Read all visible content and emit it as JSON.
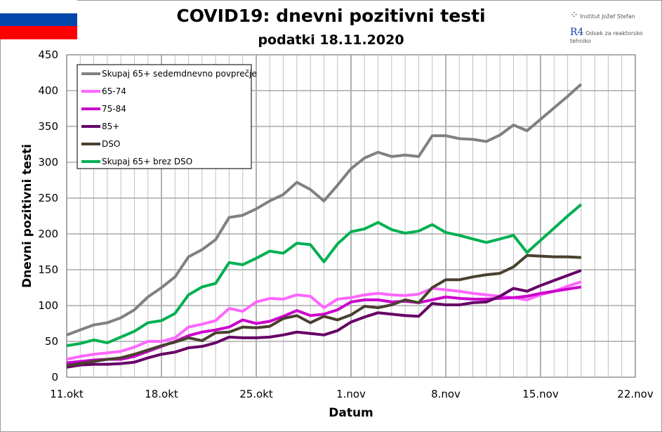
{
  "header": {
    "title": "COVID19: dnevni pozitivni testi",
    "subtitle": "podatki 18.11.2020",
    "logo_institute": "Institut Jožef Stefan",
    "logo_dept_mark": "R4",
    "logo_dept": "Odsek za reaktorsko tehniko"
  },
  "flag_colors": [
    "#ffffff",
    "#0047ab",
    "#ff0000"
  ],
  "chart_data": {
    "type": "line",
    "title": "COVID19: dnevni pozitivni testi",
    "subtitle": "podatki 18.11.2020",
    "xlabel": "Datum",
    "ylabel": "Dnevni pozitivni testi",
    "ylim": [
      0,
      450
    ],
    "yticks": [
      "0",
      "50",
      "100",
      "150",
      "200",
      "250",
      "300",
      "350",
      "400",
      "450"
    ],
    "xlim_days": [
      0,
      42
    ],
    "xticks": [
      {
        "day": 0,
        "label": "11.okt"
      },
      {
        "day": 7,
        "label": "18.okt"
      },
      {
        "day": 14,
        "label": "25.okt"
      },
      {
        "day": 21,
        "label": "1.nov"
      },
      {
        "day": 28,
        "label": "8.nov"
      },
      {
        "day": 35,
        "label": "15.nov"
      },
      {
        "day": 42,
        "label": "22.nov"
      }
    ],
    "x_start_date": "11.okt",
    "grid": true,
    "legend_placement": "top-left",
    "series": [
      {
        "name": "Skupaj 65+ sedemdnevno povprečje",
        "color": "#808080",
        "values": [
          59,
          66,
          73,
          76,
          83,
          94,
          112,
          125,
          140,
          168,
          178,
          192,
          223,
          226,
          235,
          246,
          255,
          272,
          262,
          246,
          268,
          291,
          306,
          314,
          308,
          310,
          308,
          337,
          337,
          333,
          332,
          329,
          338,
          352,
          344,
          360,
          376,
          392,
          409
        ]
      },
      {
        "name": "65-74",
        "color": "#ff66ff",
        "values": [
          25,
          29,
          32,
          34,
          36,
          42,
          50,
          50,
          55,
          70,
          74,
          79,
          96,
          92,
          105,
          110,
          109,
          115,
          113,
          97,
          109,
          111,
          115,
          117,
          115,
          114,
          116,
          124,
          122,
          120,
          117,
          115,
          113,
          111,
          108,
          115,
          120,
          127,
          133
        ]
      },
      {
        "name": "75-84",
        "color": "#cc00cc",
        "values": [
          20,
          22,
          24,
          25,
          25,
          29,
          36,
          43,
          50,
          58,
          63,
          66,
          70,
          80,
          75,
          78,
          85,
          93,
          86,
          88,
          94,
          105,
          108,
          108,
          105,
          106,
          104,
          108,
          112,
          110,
          109,
          109,
          110,
          111,
          113,
          117,
          120,
          123,
          126
        ]
      },
      {
        "name": "85+",
        "color": "#660066",
        "values": [
          14,
          17,
          18,
          18,
          19,
          21,
          27,
          32,
          35,
          41,
          43,
          48,
          56,
          55,
          55,
          56,
          59,
          63,
          61,
          59,
          65,
          77,
          84,
          90,
          88,
          86,
          85,
          103,
          101,
          101,
          104,
          105,
          113,
          124,
          120,
          128,
          135,
          142,
          149
        ]
      },
      {
        "name": "DSO",
        "color": "#4a4030",
        "values": [
          16,
          19,
          22,
          25,
          27,
          32,
          38,
          44,
          49,
          55,
          51,
          62,
          63,
          70,
          69,
          71,
          82,
          86,
          76,
          85,
          80,
          87,
          99,
          97,
          101,
          108,
          104,
          125,
          136,
          136,
          140,
          143,
          145,
          154,
          170,
          169,
          168,
          168,
          167
        ]
      },
      {
        "name": "Skupaj 65+ brez DSO",
        "color": "#00b050",
        "values": [
          44,
          47,
          52,
          48,
          56,
          64,
          76,
          79,
          89,
          115,
          126,
          131,
          160,
          157,
          166,
          176,
          173,
          187,
          185,
          161,
          186,
          203,
          207,
          216,
          206,
          201,
          204,
          213,
          202,
          198,
          193,
          188,
          193,
          198,
          174,
          191,
          208,
          225,
          241
        ]
      }
    ]
  }
}
